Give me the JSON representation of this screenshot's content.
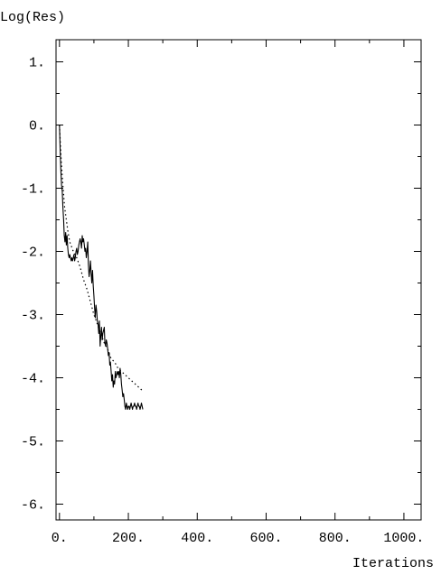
{
  "chart_data": {
    "type": "line",
    "title": "",
    "xlabel": "Iterations",
    "ylabel": "Log(Res)",
    "xlim": [
      -10,
      1050
    ],
    "ylim": [
      -6.25,
      1.35
    ],
    "x_ticks": [
      0,
      200,
      400,
      600,
      800,
      1000
    ],
    "x_tick_labels": [
      "0.",
      "200.",
      "400.",
      "600.",
      "800.",
      "1000."
    ],
    "y_ticks": [
      1,
      0,
      -1,
      -2,
      -3,
      -4,
      -5,
      -6
    ],
    "y_tick_labels": [
      "1.",
      "0.",
      "-1.",
      "-2.",
      "-3.",
      "-4.",
      "-5.",
      "-6."
    ],
    "x_minor_step": 100,
    "y_minor_step": 0.5,
    "grid": false,
    "legend": "none",
    "series": [
      {
        "style": "solid",
        "color": "#000000",
        "x": [
          0,
          2,
          4,
          6,
          8,
          10,
          12,
          14,
          16,
          18,
          20,
          22,
          24,
          26,
          28,
          30,
          32,
          34,
          36,
          38,
          40,
          42,
          44,
          46,
          48,
          50,
          52,
          54,
          56,
          58,
          60,
          62,
          64,
          66,
          68,
          70,
          72,
          74,
          76,
          78,
          80,
          82,
          84,
          86,
          88,
          90,
          92,
          94,
          96,
          98,
          100,
          102,
          104,
          106,
          108,
          110,
          112,
          114,
          116,
          118,
          120,
          122,
          124,
          126,
          128,
          130,
          132,
          134,
          136,
          138,
          140,
          142,
          144,
          146,
          148,
          150,
          152,
          154,
          156,
          158,
          160,
          162,
          164,
          166,
          168,
          170,
          172,
          174,
          176,
          178,
          180,
          182,
          184,
          186,
          188,
          190,
          192,
          194,
          196,
          198,
          200,
          202,
          204,
          206,
          208,
          210,
          212,
          214,
          216,
          218,
          220,
          222,
          224,
          226,
          228,
          230,
          232,
          234,
          236,
          238,
          240,
          242
        ],
        "y": [
          0.0,
          -0.4,
          -0.7,
          -0.95,
          -1.05,
          -1.3,
          -1.5,
          -1.75,
          -1.85,
          -1.7,
          -1.9,
          -1.75,
          -1.95,
          -2.05,
          -2.1,
          -2.05,
          -2.1,
          -2.15,
          -2.1,
          -2.15,
          -2.1,
          -2.05,
          -2.15,
          -2.1,
          -2.0,
          -1.95,
          -2.05,
          -2.0,
          -1.9,
          -1.85,
          -1.8,
          -1.85,
          -1.95,
          -1.75,
          -1.85,
          -1.8,
          -1.9,
          -2.0,
          -1.95,
          -2.1,
          -2.0,
          -1.85,
          -2.2,
          -2.4,
          -2.3,
          -2.15,
          -2.35,
          -2.5,
          -2.3,
          -2.55,
          -2.7,
          -2.9,
          -3.05,
          -2.85,
          -2.95,
          -3.1,
          -3.15,
          -3.3,
          -3.1,
          -3.5,
          -3.35,
          -3.2,
          -3.4,
          -3.3,
          -3.25,
          -3.2,
          -3.45,
          -3.5,
          -3.4,
          -3.45,
          -3.55,
          -3.65,
          -3.6,
          -3.8,
          -3.75,
          -3.9,
          -4.05,
          -3.95,
          -4.15,
          -4.05,
          -4.1,
          -3.9,
          -4.0,
          -3.95,
          -3.9,
          -3.95,
          -3.9,
          -4.0,
          -3.85,
          -3.95,
          -4.1,
          -4.2,
          -4.3,
          -4.25,
          -4.35,
          -4.45,
          -4.5,
          -4.4,
          -4.45,
          -4.5,
          -4.45,
          -4.45,
          -4.5,
          -4.45,
          -4.4,
          -4.45,
          -4.5,
          -4.45,
          -4.45,
          -4.4,
          -4.45,
          -4.45,
          -4.5,
          -4.45,
          -4.4,
          -4.45,
          -4.45,
          -4.5,
          -4.45,
          -4.4,
          -4.45,
          -4.5
        ]
      },
      {
        "style": "dotted",
        "color": "#000000",
        "x": [
          0,
          5,
          10,
          15,
          20,
          25,
          30,
          40,
          50,
          60,
          70,
          80,
          90,
          100,
          110,
          120,
          130,
          140,
          150,
          160,
          170,
          180,
          190,
          200,
          210,
          220,
          230,
          240
        ],
        "y": [
          0.0,
          -0.55,
          -0.95,
          -1.3,
          -1.5,
          -1.7,
          -1.85,
          -2.0,
          -2.1,
          -2.25,
          -2.45,
          -2.6,
          -2.8,
          -3.0,
          -3.15,
          -3.3,
          -3.45,
          -3.55,
          -3.7,
          -3.75,
          -3.85,
          -3.9,
          -3.95,
          -4.0,
          -4.05,
          -4.1,
          -4.15,
          -4.2
        ]
      }
    ]
  }
}
